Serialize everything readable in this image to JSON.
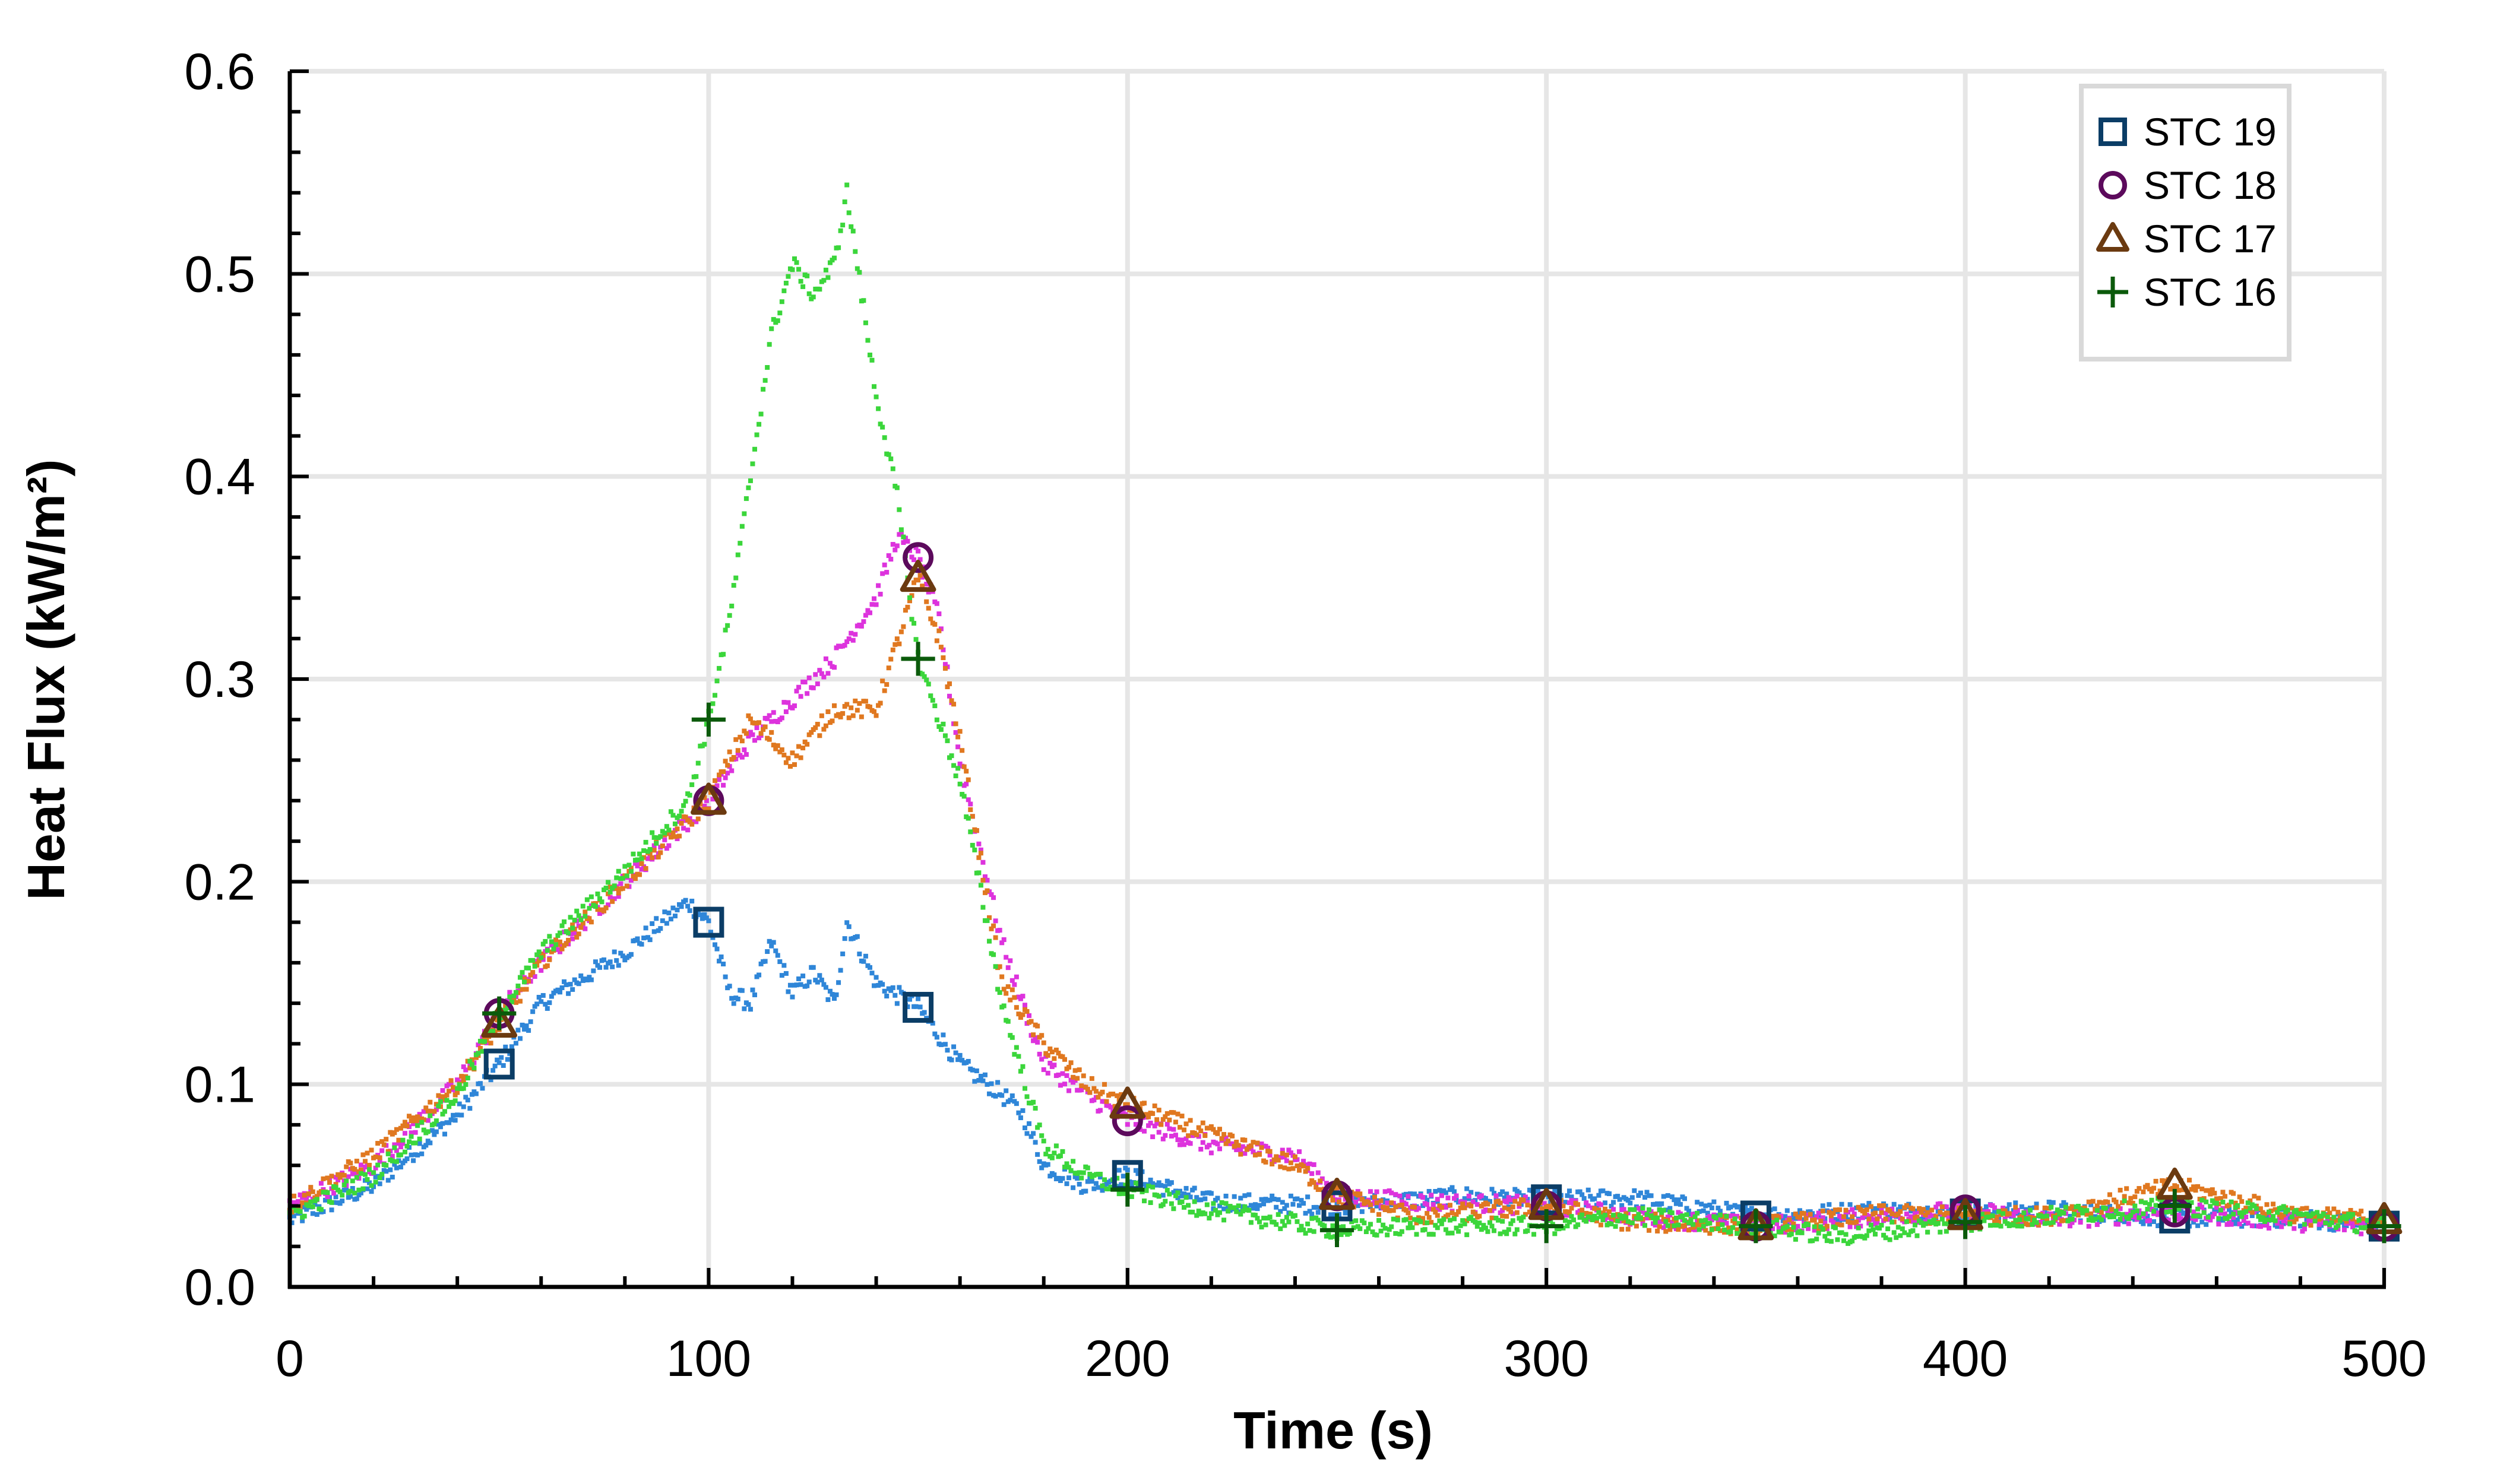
{
  "chart_data": {
    "type": "scatter",
    "xlabel": "Time (s)",
    "ylabel": "Heat Flux (kW/m²)",
    "xlim": [
      0,
      500
    ],
    "ylim": [
      0,
      0.6
    ],
    "x_ticks": [
      0,
      100,
      200,
      300,
      400,
      500
    ],
    "x_tick_labels": [
      "0",
      "100",
      "200",
      "300",
      "400",
      "500"
    ],
    "y_ticks": [
      0,
      0.1,
      0.2,
      0.3,
      0.4,
      0.5,
      0.6
    ],
    "y_tick_labels": [
      "0.0",
      "0.1",
      "0.2",
      "0.3",
      "0.4",
      "0.5",
      "0.6"
    ],
    "grid": true,
    "legend_position": "top-right",
    "series": [
      {
        "name": "STC 19",
        "marker": "square",
        "dot_color": "#2f86d8",
        "marker_color": "#0b3d66",
        "x": [
          0,
          20,
          40,
          50,
          60,
          80,
          95,
          100,
          105,
          110,
          115,
          120,
          125,
          130,
          133,
          140,
          150,
          160,
          170,
          175,
          180,
          190,
          200,
          220,
          250,
          280,
          300,
          320,
          350,
          380,
          400,
          420,
          450,
          480,
          500
        ],
        "y": [
          0.033,
          0.05,
          0.085,
          0.11,
          0.14,
          0.165,
          0.19,
          0.18,
          0.145,
          0.14,
          0.17,
          0.145,
          0.155,
          0.14,
          0.18,
          0.15,
          0.138,
          0.11,
          0.095,
          0.085,
          0.06,
          0.05,
          0.055,
          0.042,
          0.04,
          0.045,
          0.043,
          0.044,
          0.035,
          0.038,
          0.036,
          0.038,
          0.034,
          0.034,
          0.03
        ]
      },
      {
        "name": "STC 18",
        "marker": "circle",
        "dot_color": "#dd33dd",
        "marker_color": "#5c0a5c",
        "x": [
          0,
          20,
          40,
          50,
          60,
          80,
          95,
          100,
          110,
          120,
          130,
          140,
          145,
          150,
          155,
          160,
          170,
          180,
          190,
          200,
          220,
          240,
          250,
          270,
          300,
          320,
          350,
          380,
          400,
          420,
          450,
          480,
          500
        ],
        "y": [
          0.04,
          0.06,
          0.1,
          0.135,
          0.16,
          0.2,
          0.23,
          0.24,
          0.27,
          0.29,
          0.31,
          0.34,
          0.37,
          0.36,
          0.33,
          0.26,
          0.17,
          0.11,
          0.095,
          0.082,
          0.07,
          0.065,
          0.045,
          0.042,
          0.04,
          0.035,
          0.03,
          0.035,
          0.038,
          0.033,
          0.037,
          0.032,
          0.03
        ]
      },
      {
        "name": "STC 17",
        "marker": "triangle",
        "dot_color": "#e07820",
        "marker_color": "#6b3a10",
        "x": [
          0,
          20,
          40,
          50,
          60,
          80,
          95,
          100,
          110,
          120,
          130,
          140,
          150,
          155,
          160,
          170,
          180,
          190,
          200,
          220,
          240,
          250,
          270,
          300,
          320,
          350,
          380,
          400,
          420,
          450,
          480,
          500
        ],
        "y": [
          0.04,
          0.065,
          0.1,
          0.13,
          0.16,
          0.2,
          0.23,
          0.24,
          0.28,
          0.26,
          0.285,
          0.285,
          0.35,
          0.32,
          0.27,
          0.15,
          0.12,
          0.1,
          0.09,
          0.075,
          0.06,
          0.045,
          0.035,
          0.04,
          0.032,
          0.03,
          0.036,
          0.035,
          0.035,
          0.05,
          0.035,
          0.033
        ]
      },
      {
        "name": "STC 16",
        "marker": "plus",
        "dot_color": "#3bd63b",
        "marker_color": "#0b5a0b",
        "x": [
          0,
          20,
          40,
          50,
          60,
          80,
          95,
          100,
          105,
          110,
          115,
          120,
          125,
          130,
          133,
          140,
          145,
          150,
          160,
          170,
          180,
          190,
          200,
          220,
          250,
          270,
          300,
          320,
          350,
          370,
          400,
          420,
          450,
          480,
          500
        ],
        "y": [
          0.035,
          0.055,
          0.095,
          0.135,
          0.165,
          0.205,
          0.24,
          0.28,
          0.33,
          0.4,
          0.47,
          0.505,
          0.49,
          0.505,
          0.54,
          0.44,
          0.39,
          0.31,
          0.25,
          0.14,
          0.07,
          0.055,
          0.048,
          0.038,
          0.028,
          0.03,
          0.03,
          0.035,
          0.03,
          0.025,
          0.032,
          0.035,
          0.04,
          0.035,
          0.03
        ]
      }
    ]
  }
}
